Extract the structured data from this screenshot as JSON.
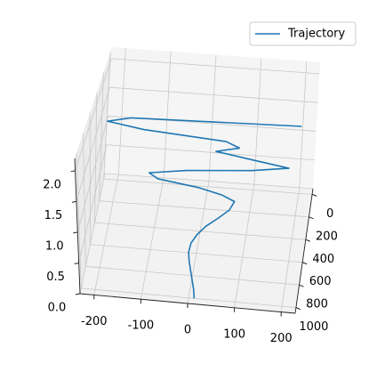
{
  "chart_data": {
    "type": "line3d",
    "series": [
      {
        "name": "Trajectory",
        "color": "#1f77b4",
        "x": [
          12,
          10,
          6,
          2,
          -2,
          -4,
          0,
          12,
          30,
          55,
          78,
          88,
          60,
          10,
          -80,
          -100,
          -20,
          120,
          200,
          120,
          40,
          90,
          60,
          -120,
          -200,
          -150,
          220
        ],
        "y": [
          1000,
          973,
          945,
          918,
          890,
          863,
          835,
          808,
          780,
          753,
          725,
          698,
          681,
          665,
          648,
          632,
          615,
          599,
          582,
          566,
          549,
          533,
          516,
          500,
          483,
          467,
          450
        ],
        "z": [
          0,
          0.1,
          0.2,
          0.3,
          0.4,
          0.5,
          0.6,
          0.7,
          0.8,
          0.9,
          1.0,
          1.1,
          1.16,
          1.22,
          1.28,
          1.34,
          1.4,
          1.46,
          1.52,
          1.58,
          1.64,
          1.7,
          1.76,
          1.82,
          1.88,
          1.94,
          2.0
        ]
      }
    ],
    "xlim": [
      -230,
      230
    ],
    "ylim": [
      -50,
      1050
    ],
    "zlim": [
      0,
      2.2
    ],
    "xticks": [
      -200,
      -100,
      0,
      100,
      200
    ],
    "yticks": [
      0,
      200,
      400,
      600,
      800,
      1000
    ],
    "zticks": [
      {
        "value": 0,
        "label": "0.0"
      },
      0.5,
      {
        "value": 1,
        "label": "1.0"
      },
      1.5,
      {
        "value": 2,
        "label": "2.0"
      }
    ],
    "grid": true,
    "legend": "upper right"
  }
}
